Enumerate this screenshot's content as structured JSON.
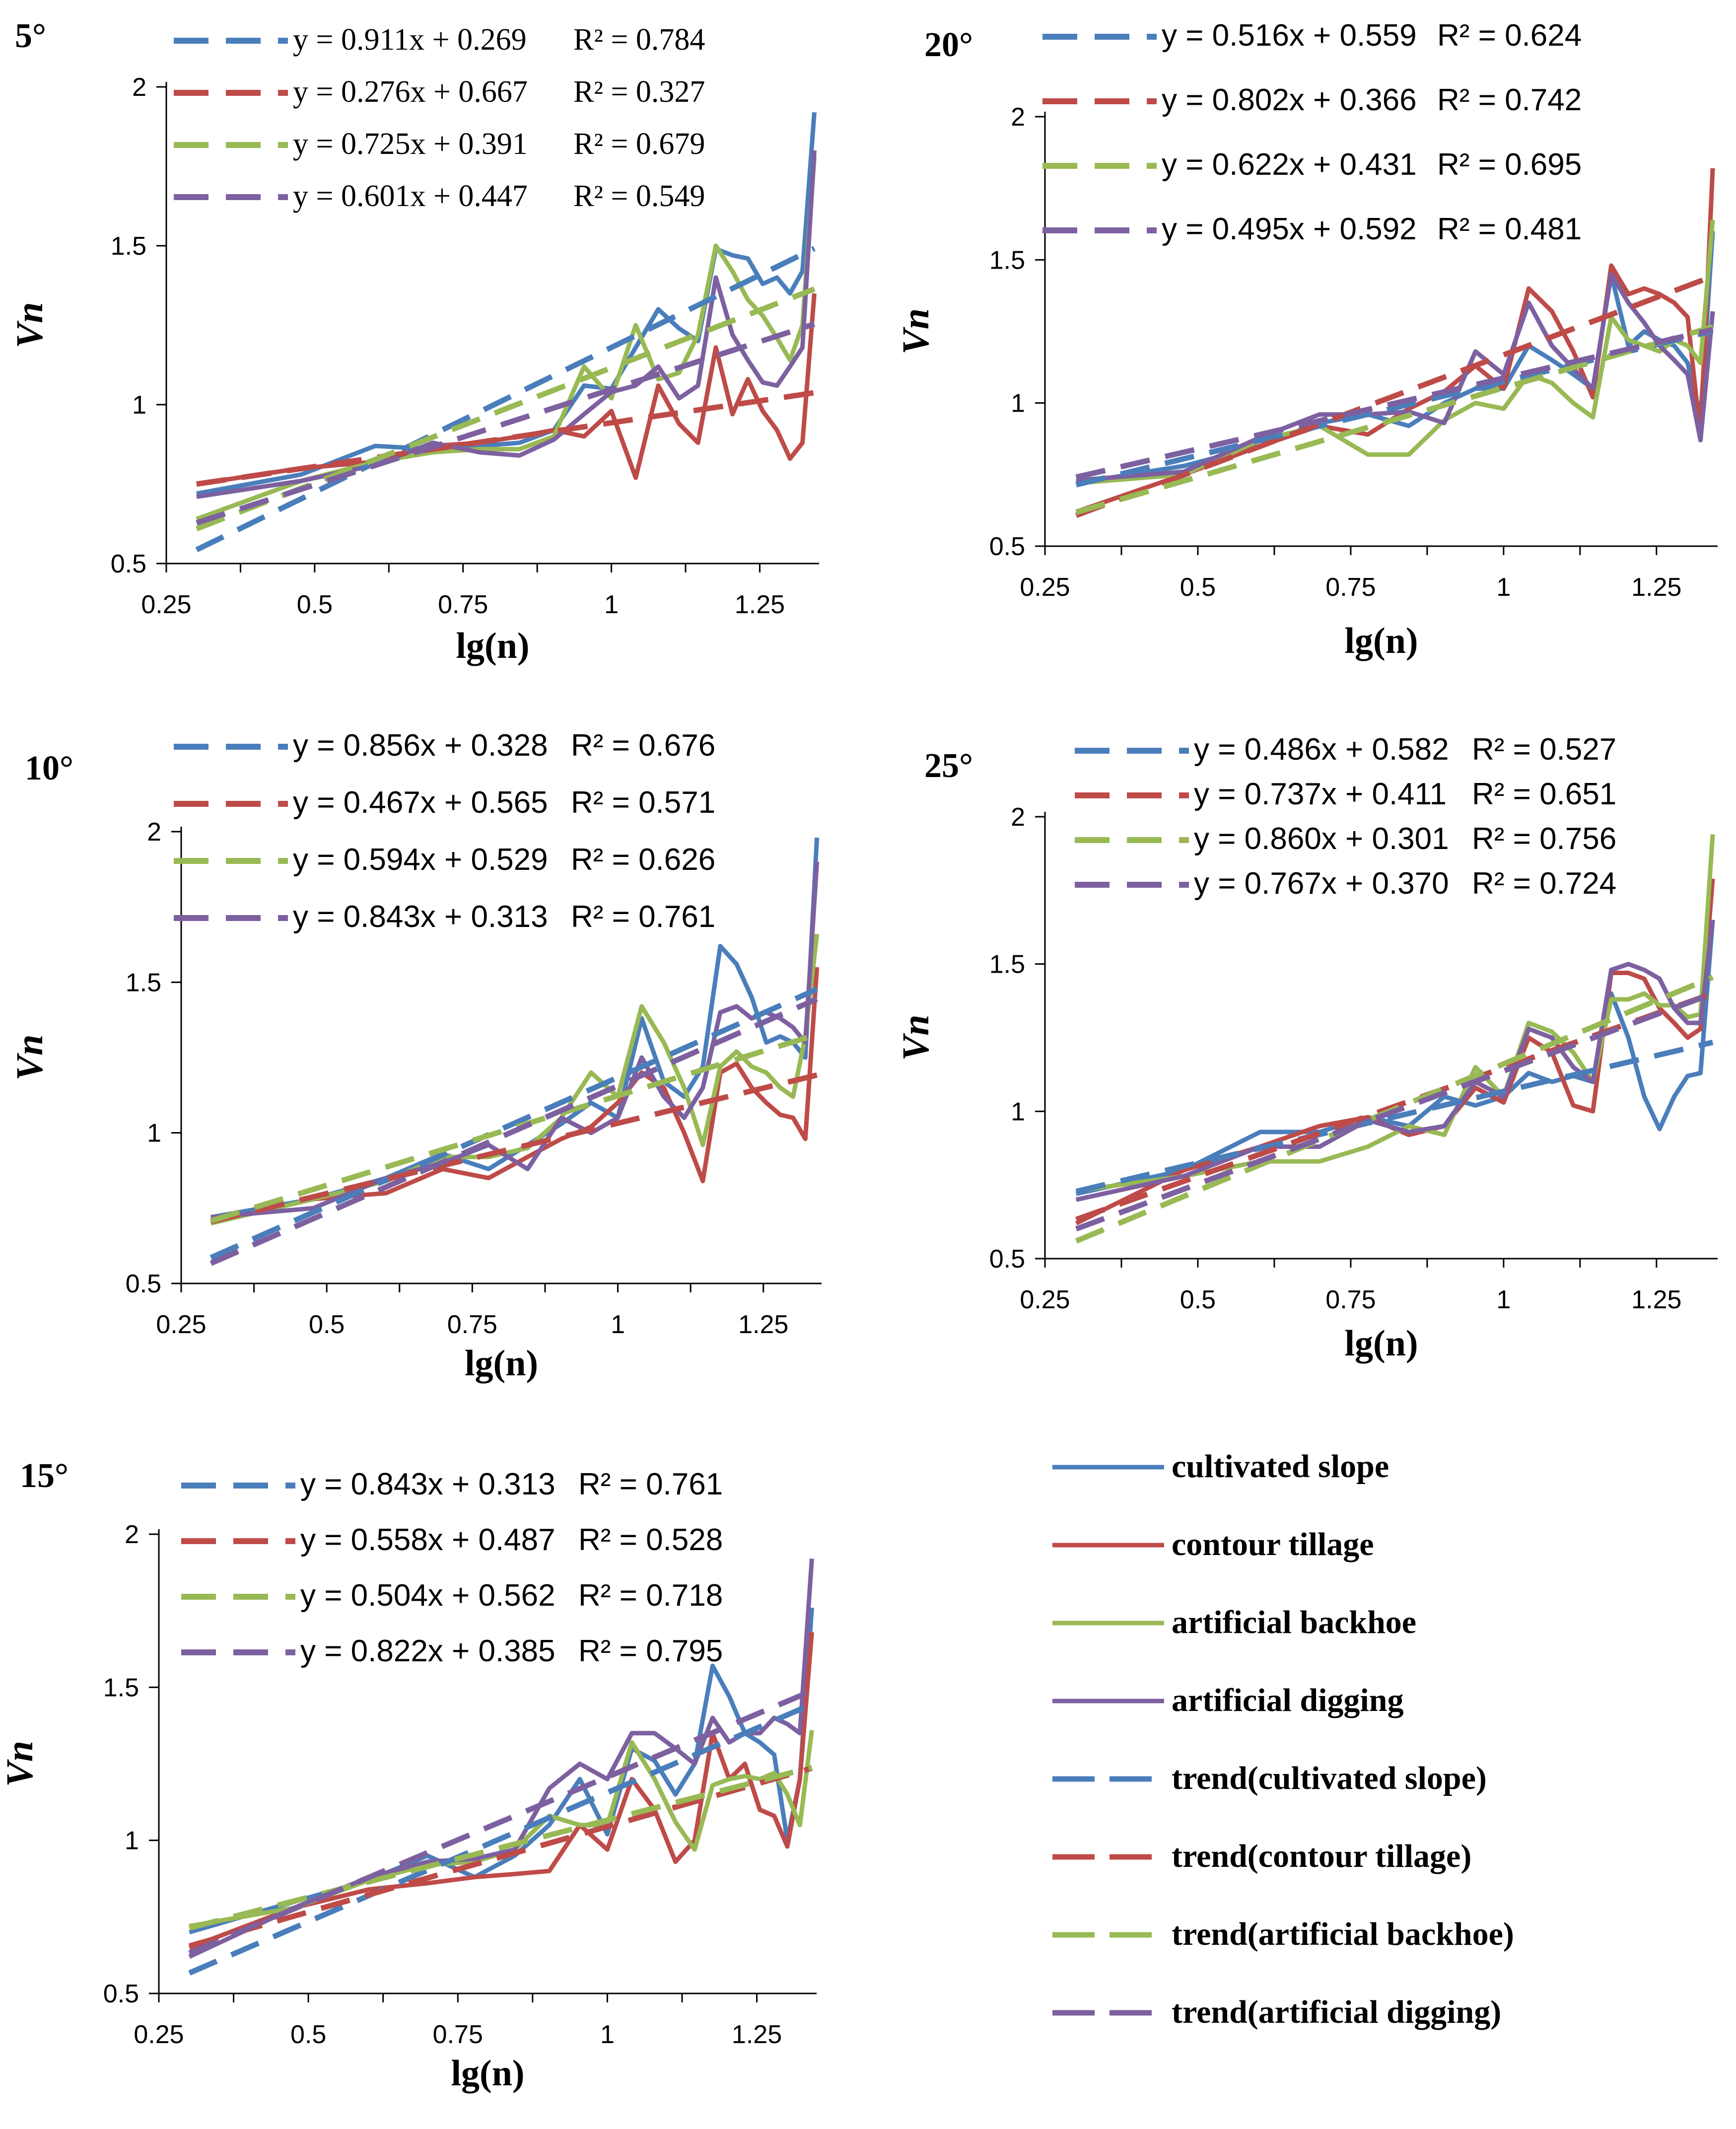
{
  "colors": {
    "cultivated_slope": "#4a7ebb",
    "contour_tillage": "#be4b48",
    "artificial_backhoe": "#98b954",
    "artificial_digging": "#7d60a0",
    "axis": "#000000"
  },
  "legend": {
    "entries": [
      {
        "label": "cultivated slope",
        "color_key": "cultivated_slope",
        "dashed": false
      },
      {
        "label": "contour tillage",
        "color_key": "contour_tillage",
        "dashed": false
      },
      {
        "label": "artificial backhoe",
        "color_key": "artificial_backhoe",
        "dashed": false
      },
      {
        "label": "artificial digging",
        "color_key": "artificial_digging",
        "dashed": false
      },
      {
        "label": "trend(cultivated slope)",
        "color_key": "cultivated_slope",
        "dashed": true
      },
      {
        "label": "trend(contour tillage)",
        "color_key": "contour_tillage",
        "dashed": true
      },
      {
        "label": "trend(artificial backhoe)",
        "color_key": "artificial_backhoe",
        "dashed": true
      },
      {
        "label": "trend(artificial digging)",
        "color_key": "artificial_digging",
        "dashed": true
      }
    ]
  },
  "chart_data": [
    {
      "type": "line",
      "title": "5°",
      "xlabel": "lg(n)",
      "ylabel": "Vn",
      "xlim": [
        0.25,
        1.35
      ],
      "ylim": [
        0.5,
        2
      ],
      "x_ticks": [
        "0.25",
        "0.5",
        "0.75",
        "1",
        "1.25"
      ],
      "y_ticks": [
        "0.5",
        "1",
        "1.5",
        "2"
      ],
      "equations": [
        "y = 0.911x + 0.269",
        "y = 0.276x + 0.667",
        "y = 0.725x + 0.391",
        "y = 0.601x + 0.447"
      ],
      "r2": [
        "R² = 0.784",
        "R² = 0.327",
        "R² = 0.679",
        "R² = 0.549"
      ],
      "trend": [
        [
          0.911,
          0.269
        ],
        [
          0.276,
          0.667
        ],
        [
          0.725,
          0.391
        ],
        [
          0.601,
          0.447
        ]
      ],
      "x": [
        0.301,
        0.477,
        0.602,
        0.699,
        0.778,
        0.845,
        0.903,
        0.954,
        1.0,
        1.041,
        1.079,
        1.114,
        1.146,
        1.176,
        1.204,
        1.23,
        1.255,
        1.279,
        1.301,
        1.322,
        1.342
      ],
      "series": [
        {
          "name": "cultivated slope",
          "values": [
            0.72,
            0.78,
            0.87,
            0.86,
            0.87,
            0.88,
            0.92,
            1.06,
            1.05,
            1.18,
            1.3,
            1.24,
            1.2,
            1.49,
            1.47,
            1.46,
            1.38,
            1.4,
            1.35,
            1.42,
            1.92
          ]
        },
        {
          "name": "contour tillage",
          "values": [
            0.75,
            0.8,
            0.82,
            0.87,
            0.88,
            0.9,
            0.92,
            0.9,
            0.98,
            0.77,
            1.06,
            0.94,
            0.88,
            1.18,
            0.97,
            1.08,
            0.98,
            0.92,
            0.83,
            0.88,
            1.35
          ]
        },
        {
          "name": "artificial backhoe",
          "values": [
            0.64,
            0.76,
            0.82,
            0.85,
            0.86,
            0.86,
            0.9,
            1.12,
            1.02,
            1.25,
            1.08,
            1.1,
            1.22,
            1.5,
            1.42,
            1.33,
            1.28,
            1.21,
            1.14,
            1.25,
            1.78
          ]
        },
        {
          "name": "artificial digging",
          "values": [
            0.71,
            0.76,
            0.81,
            0.88,
            0.85,
            0.84,
            0.89,
            0.97,
            1.04,
            1.06,
            1.12,
            1.02,
            1.06,
            1.4,
            1.22,
            1.14,
            1.07,
            1.06,
            1.12,
            1.18,
            1.8
          ]
        }
      ]
    },
    {
      "type": "line",
      "title": "20°",
      "xlabel": "lg(n)",
      "ylabel": "Vn",
      "xlim": [
        0.25,
        1.35
      ],
      "ylim": [
        0.5,
        2
      ],
      "x_ticks": [
        "0.25",
        "0.5",
        "0.75",
        "1",
        "1.25"
      ],
      "y_ticks": [
        "0.5",
        "1",
        "1.5",
        "2"
      ],
      "equations": [
        "y = 0.516x + 0.559",
        "y = 0.802x + 0.366",
        "y = 0.622x + 0.431",
        "y = 0.495x + 0.592"
      ],
      "r2": [
        "R² = 0.624",
        "R² = 0.742",
        "R² = 0.695",
        "R² = 0.481"
      ],
      "trend": [
        [
          0.516,
          0.559
        ],
        [
          0.802,
          0.366
        ],
        [
          0.622,
          0.431
        ],
        [
          0.495,
          0.592
        ]
      ],
      "x": [
        0.301,
        0.477,
        0.602,
        0.699,
        0.778,
        0.845,
        0.903,
        0.954,
        1.0,
        1.041,
        1.079,
        1.114,
        1.146,
        1.176,
        1.204,
        1.23,
        1.255,
        1.279,
        1.301,
        1.322,
        1.342
      ],
      "series": [
        {
          "name": "cultivated slope",
          "values": [
            0.72,
            0.78,
            0.85,
            0.93,
            0.96,
            0.92,
            1.0,
            1.05,
            1.05,
            1.2,
            1.15,
            1.1,
            1.05,
            1.45,
            1.2,
            1.25,
            1.22,
            1.2,
            1.14,
            0.95,
            1.6
          ]
        },
        {
          "name": "contour tillage",
          "values": [
            0.62,
            0.75,
            0.85,
            0.92,
            0.89,
            0.98,
            1.04,
            1.13,
            1.05,
            1.4,
            1.32,
            1.18,
            1.02,
            1.48,
            1.38,
            1.4,
            1.38,
            1.35,
            1.3,
            0.88,
            1.82
          ]
        },
        {
          "name": "artificial backhoe",
          "values": [
            0.72,
            0.75,
            0.87,
            0.92,
            0.82,
            0.82,
            0.94,
            1.0,
            0.98,
            1.1,
            1.07,
            1.0,
            0.95,
            1.3,
            1.22,
            1.2,
            1.18,
            1.22,
            1.2,
            1.14,
            1.64
          ]
        },
        {
          "name": "artificial digging",
          "values": [
            0.73,
            0.76,
            0.88,
            0.96,
            0.96,
            0.97,
            0.93,
            1.18,
            1.1,
            1.35,
            1.2,
            1.12,
            1.05,
            1.45,
            1.35,
            1.28,
            1.2,
            1.15,
            1.1,
            0.87,
            1.32
          ]
        }
      ]
    },
    {
      "type": "line",
      "title": "10°",
      "xlabel": "lg(n)",
      "ylabel": "Vn",
      "xlim": [
        0.25,
        1.35
      ],
      "ylim": [
        0.5,
        2
      ],
      "x_ticks": [
        "0.25",
        "0.5",
        "0.75",
        "1",
        "1.25"
      ],
      "y_ticks": [
        "0.5",
        "1",
        "1.5",
        "2"
      ],
      "equations": [
        "y = 0.856x + 0.328",
        "y = 0.467x + 0.565",
        "y = 0.594x + 0.529",
        "y = 0.843x + 0.313"
      ],
      "r2": [
        "R² = 0.676",
        "R² = 0.571",
        "R² = 0.626",
        "R² = 0.761"
      ],
      "trend": [
        [
          0.856,
          0.328
        ],
        [
          0.467,
          0.565
        ],
        [
          0.594,
          0.529
        ],
        [
          0.843,
          0.313
        ]
      ],
      "x": [
        0.301,
        0.477,
        0.602,
        0.699,
        0.778,
        0.845,
        0.903,
        0.954,
        1.0,
        1.041,
        1.079,
        1.114,
        1.146,
        1.176,
        1.204,
        1.23,
        1.255,
        1.279,
        1.301,
        1.322,
        1.342
      ],
      "series": [
        {
          "name": "cultivated slope",
          "values": [
            0.72,
            0.78,
            0.85,
            0.93,
            0.88,
            0.96,
            1.03,
            1.1,
            1.05,
            1.38,
            1.17,
            1.12,
            1.22,
            1.62,
            1.56,
            1.45,
            1.3,
            1.32,
            1.3,
            1.25,
            1.98
          ]
        },
        {
          "name": "contour tillage",
          "values": [
            0.7,
            0.78,
            0.8,
            0.88,
            0.85,
            0.92,
            0.98,
            1.02,
            1.1,
            1.2,
            1.15,
            1.0,
            0.84,
            1.2,
            1.23,
            1.15,
            1.1,
            1.06,
            1.05,
            0.98,
            1.55
          ]
        },
        {
          "name": "artificial backhoe",
          "values": [
            0.7,
            0.78,
            0.84,
            0.92,
            0.92,
            0.95,
            1.05,
            1.2,
            1.12,
            1.42,
            1.3,
            1.15,
            0.96,
            1.22,
            1.27,
            1.22,
            1.2,
            1.15,
            1.12,
            1.32,
            1.66
          ]
        },
        {
          "name": "artificial digging",
          "values": [
            0.72,
            0.75,
            0.85,
            0.9,
            0.96,
            0.88,
            1.05,
            1.0,
            1.05,
            1.25,
            1.12,
            1.05,
            1.15,
            1.4,
            1.42,
            1.38,
            1.4,
            1.38,
            1.35,
            1.3,
            1.9
          ]
        }
      ]
    },
    {
      "type": "line",
      "title": "25°",
      "xlabel": "lg(n)",
      "ylabel": "Vn",
      "xlim": [
        0.25,
        1.35
      ],
      "ylim": [
        0.5,
        2
      ],
      "x_ticks": [
        "0.25",
        "0.5",
        "0.75",
        "1",
        "1.25"
      ],
      "y_ticks": [
        "0.5",
        "1",
        "1.5",
        "2"
      ],
      "equations": [
        "y = 0.486x + 0.582",
        "y = 0.737x + 0.411",
        "y = 0.860x + 0.301",
        "y = 0.767x + 0.370"
      ],
      "r2": [
        "R² = 0.527",
        "R² = 0.651",
        "R² = 0.756",
        "R² = 0.724"
      ],
      "trend": [
        [
          0.486,
          0.582
        ],
        [
          0.737,
          0.411
        ],
        [
          0.86,
          0.301
        ],
        [
          0.767,
          0.37
        ]
      ],
      "x": [
        0.301,
        0.477,
        0.602,
        0.699,
        0.778,
        0.845,
        0.903,
        0.954,
        1.0,
        1.041,
        1.079,
        1.114,
        1.146,
        1.176,
        1.204,
        1.23,
        1.255,
        1.279,
        1.301,
        1.322,
        1.342
      ],
      "series": [
        {
          "name": "cultivated slope",
          "values": [
            0.72,
            0.8,
            0.93,
            0.93,
            0.98,
            0.95,
            1.05,
            1.02,
            1.05,
            1.13,
            1.1,
            1.12,
            1.1,
            1.4,
            1.25,
            1.05,
            0.94,
            1.05,
            1.12,
            1.13,
            1.65
          ]
        },
        {
          "name": "contour tillage",
          "values": [
            0.62,
            0.8,
            0.88,
            0.95,
            0.98,
            0.92,
            0.95,
            1.08,
            1.03,
            1.25,
            1.2,
            1.02,
            1.0,
            1.47,
            1.47,
            1.45,
            1.35,
            1.3,
            1.25,
            1.28,
            1.79
          ]
        },
        {
          "name": "artificial backhoe",
          "values": [
            0.73,
            0.78,
            0.83,
            0.83,
            0.88,
            0.95,
            0.92,
            1.15,
            1.05,
            1.3,
            1.27,
            1.2,
            1.1,
            1.38,
            1.38,
            1.4,
            1.36,
            1.36,
            1.32,
            1.33,
            1.94
          ]
        },
        {
          "name": "artificial digging",
          "values": [
            0.7,
            0.78,
            0.88,
            0.88,
            0.97,
            0.93,
            0.95,
            1.1,
            1.05,
            1.28,
            1.25,
            1.15,
            1.1,
            1.48,
            1.5,
            1.48,
            1.45,
            1.35,
            1.3,
            1.3,
            1.65
          ]
        }
      ]
    },
    {
      "type": "line",
      "title": "15°",
      "xlabel": "lg(n)",
      "ylabel": "Vn",
      "xlim": [
        0.25,
        1.35
      ],
      "ylim": [
        0.5,
        2
      ],
      "x_ticks": [
        "0.25",
        "0.5",
        "0.75",
        "1",
        "1.25"
      ],
      "y_ticks": [
        "0.5",
        "1",
        "1.5",
        "2"
      ],
      "equations": [
        "y = 0.843x + 0.313",
        "y = 0.558x + 0.487",
        "y = 0.504x + 0.562",
        "y = 0.822x + 0.385"
      ],
      "r2": [
        "R² = 0.761",
        "R² = 0.528",
        "R² = 0.718",
        "R² = 0.795"
      ],
      "trend": [
        [
          0.843,
          0.313
        ],
        [
          0.558,
          0.487
        ],
        [
          0.504,
          0.562
        ],
        [
          0.822,
          0.385
        ]
      ],
      "x": [
        0.301,
        0.477,
        0.602,
        0.699,
        0.778,
        0.845,
        0.903,
        0.954,
        1.0,
        1.041,
        1.079,
        1.114,
        1.146,
        1.176,
        1.204,
        1.23,
        1.255,
        1.279,
        1.301,
        1.322,
        1.342
      ],
      "series": [
        {
          "name": "cultivated slope",
          "values": [
            0.7,
            0.8,
            0.87,
            0.95,
            0.88,
            0.95,
            1.05,
            1.2,
            1.02,
            1.3,
            1.26,
            1.15,
            1.25,
            1.57,
            1.47,
            1.35,
            1.32,
            1.28,
            1.0,
            1.2,
            1.76
          ]
        },
        {
          "name": "contour tillage",
          "values": [
            0.65,
            0.78,
            0.84,
            0.86,
            0.88,
            0.89,
            0.9,
            1.05,
            0.97,
            1.2,
            1.1,
            0.93,
            1.0,
            1.35,
            1.2,
            1.25,
            1.1,
            1.08,
            0.98,
            1.2,
            1.68
          ]
        },
        {
          "name": "artificial backhoe",
          "values": [
            0.72,
            0.78,
            0.87,
            0.92,
            0.93,
            0.97,
            1.08,
            1.05,
            1.05,
            1.32,
            1.2,
            1.06,
            0.97,
            1.18,
            1.2,
            1.21,
            1.2,
            1.22,
            1.15,
            1.05,
            1.36
          ]
        },
        {
          "name": "artificial digging",
          "values": [
            0.62,
            0.78,
            0.88,
            0.93,
            0.94,
            0.97,
            1.17,
            1.25,
            1.2,
            1.35,
            1.35,
            1.3,
            1.25,
            1.4,
            1.32,
            1.35,
            1.35,
            1.4,
            1.38,
            1.35,
            1.92
          ]
        }
      ]
    }
  ]
}
